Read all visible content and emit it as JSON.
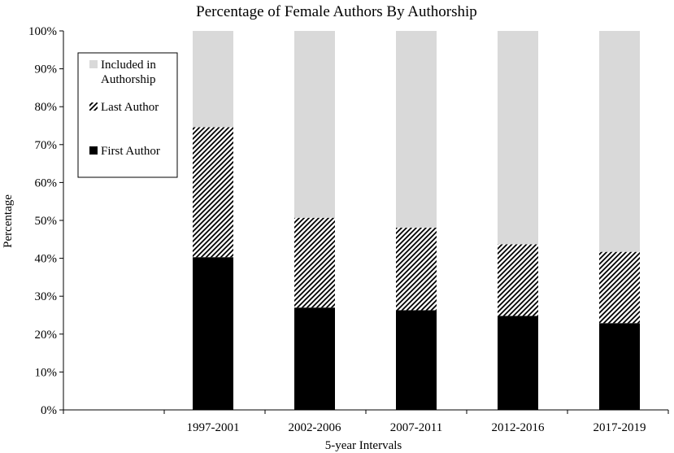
{
  "chart_data": {
    "type": "bar",
    "stacked": true,
    "title": "Percentage of Female Authors By Authorship",
    "xlabel": "5-year Intervals",
    "ylabel": "Percentage",
    "ylim": [
      0,
      100
    ],
    "yticks": [
      "0%",
      "10%",
      "20%",
      "30%",
      "40%",
      "50%",
      "60%",
      "70%",
      "80%",
      "90%",
      "100%"
    ],
    "categories": [
      "1997-2001",
      "2002-2006",
      "2007-2011",
      "2012-2016",
      "2017-2019"
    ],
    "series": [
      {
        "name": "First Author",
        "pattern": "solid",
        "color": "#000000",
        "values": [
          40.3,
          27.0,
          26.3,
          24.8,
          22.9
        ]
      },
      {
        "name": "Last Author",
        "pattern": "diagonal-hatch",
        "color": "#000000",
        "values": [
          34.3,
          23.7,
          21.8,
          18.9,
          18.8
        ]
      },
      {
        "name": "Included in Authorship",
        "pattern": "solid",
        "color": "#d9d9d9",
        "values": [
          25.4,
          49.3,
          51.9,
          56.3,
          58.3
        ]
      }
    ],
    "legend": {
      "position": "top-left",
      "order": [
        "Included in Authorship",
        "Last Author",
        "First Author"
      ]
    },
    "grid": false
  }
}
